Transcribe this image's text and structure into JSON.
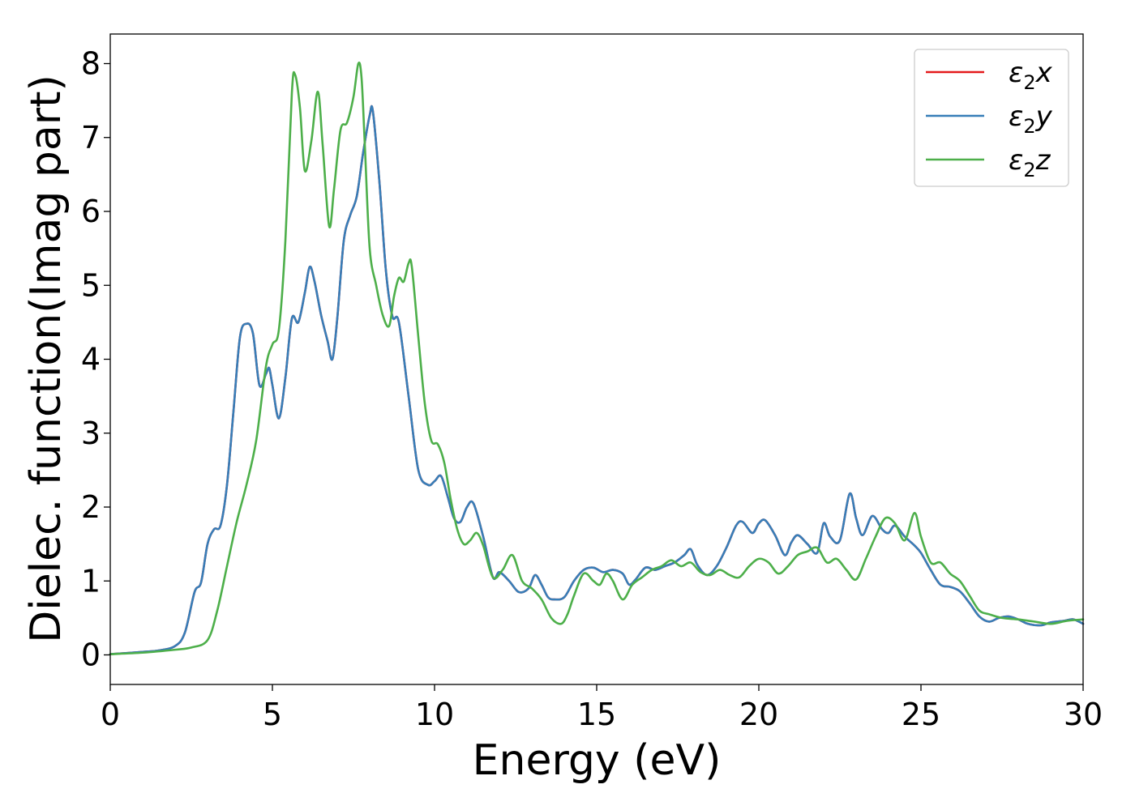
{
  "chart_data": {
    "type": "line",
    "xlabel": "Energy (eV)",
    "ylabel": "Dielec. function(Imag part)",
    "xlim": [
      0,
      30
    ],
    "ylim": [
      -0.4,
      8.4
    ],
    "xticks": [
      "0",
      "5",
      "10",
      "15",
      "20",
      "25",
      "30"
    ],
    "yticks": [
      "0",
      "1",
      "2",
      "3",
      "4",
      "5",
      "6",
      "7",
      "8"
    ],
    "grid": false,
    "legend_position": "top-right",
    "legend": [
      {
        "base": "ε",
        "sub": "2",
        "suffix": "x",
        "color": "#e41a1c"
      },
      {
        "base": "ε",
        "sub": "2",
        "suffix": "y",
        "color": "#377eb8"
      },
      {
        "base": "ε",
        "sub": "2",
        "suffix": "z",
        "color": "#4daf4a"
      }
    ],
    "series": [
      {
        "name": "ε2x",
        "color": "#e41a1c",
        "x": [
          0,
          1,
          1.5,
          2,
          2.3,
          2.6,
          2.8,
          3.0,
          3.2,
          3.4,
          3.6,
          3.8,
          4.0,
          4.2,
          4.4,
          4.6,
          4.8,
          4.9,
          5.0,
          5.2,
          5.4,
          5.6,
          5.8,
          6.0,
          6.15,
          6.3,
          6.5,
          6.7,
          6.85,
          7.0,
          7.2,
          7.4,
          7.6,
          7.8,
          8.0,
          8.1,
          8.3,
          8.5,
          8.7,
          8.9,
          9.2,
          9.5,
          9.8,
          10.0,
          10.2,
          10.4,
          10.6,
          10.8,
          11.0,
          11.2,
          11.5,
          11.8,
          12.0,
          12.3,
          12.6,
          12.9,
          13.1,
          13.3,
          13.5,
          13.7,
          14.0,
          14.3,
          14.6,
          14.9,
          15.2,
          15.5,
          15.8,
          16.0,
          16.2,
          16.5,
          16.8,
          17.1,
          17.4,
          17.7,
          17.9,
          18.1,
          18.4,
          18.7,
          19.0,
          19.3,
          19.5,
          19.8,
          20.0,
          20.2,
          20.5,
          20.8,
          21.0,
          21.2,
          21.5,
          21.8,
          22.0,
          22.2,
          22.5,
          22.8,
          23.0,
          23.2,
          23.5,
          23.8,
          24.0,
          24.2,
          24.5,
          24.8,
          25.0,
          25.3,
          25.6,
          25.9,
          26.2,
          26.5,
          26.8,
          27.1,
          27.4,
          27.7,
          28.0,
          28.3,
          28.7,
          29.0,
          29.4,
          29.7,
          30.0
        ],
        "values": [
          0.01,
          0.04,
          0.06,
          0.12,
          0.3,
          0.85,
          0.98,
          1.5,
          1.7,
          1.75,
          2.3,
          3.3,
          4.3,
          4.48,
          4.35,
          3.65,
          3.8,
          3.88,
          3.65,
          3.2,
          3.75,
          4.55,
          4.5,
          4.9,
          5.25,
          5.05,
          4.6,
          4.25,
          4.0,
          4.55,
          5.6,
          5.95,
          6.2,
          6.8,
          7.3,
          7.35,
          6.4,
          5.2,
          4.58,
          4.5,
          3.5,
          2.5,
          2.3,
          2.35,
          2.42,
          2.15,
          1.85,
          1.8,
          2.0,
          2.05,
          1.6,
          1.05,
          1.12,
          1.0,
          0.85,
          0.9,
          1.08,
          0.95,
          0.78,
          0.75,
          0.78,
          1.0,
          1.15,
          1.18,
          1.12,
          1.15,
          1.1,
          0.95,
          1.02,
          1.18,
          1.15,
          1.2,
          1.25,
          1.35,
          1.43,
          1.22,
          1.08,
          1.2,
          1.45,
          1.75,
          1.8,
          1.65,
          1.78,
          1.82,
          1.62,
          1.35,
          1.52,
          1.62,
          1.5,
          1.38,
          1.78,
          1.6,
          1.55,
          2.18,
          1.85,
          1.62,
          1.88,
          1.7,
          1.65,
          1.75,
          1.6,
          1.48,
          1.38,
          1.15,
          0.95,
          0.92,
          0.86,
          0.7,
          0.52,
          0.45,
          0.5,
          0.52,
          0.48,
          0.42,
          0.4,
          0.44,
          0.46,
          0.48,
          0.42
        ]
      },
      {
        "name": "ε2y",
        "color": "#377eb8",
        "x": [
          0,
          1,
          1.5,
          2,
          2.3,
          2.6,
          2.8,
          3.0,
          3.2,
          3.4,
          3.6,
          3.8,
          4.0,
          4.2,
          4.4,
          4.6,
          4.8,
          4.9,
          5.0,
          5.2,
          5.4,
          5.6,
          5.8,
          6.0,
          6.15,
          6.3,
          6.5,
          6.7,
          6.85,
          7.0,
          7.2,
          7.4,
          7.6,
          7.8,
          8.0,
          8.1,
          8.3,
          8.5,
          8.7,
          8.9,
          9.2,
          9.5,
          9.8,
          10.0,
          10.2,
          10.4,
          10.6,
          10.8,
          11.0,
          11.2,
          11.5,
          11.8,
          12.0,
          12.3,
          12.6,
          12.9,
          13.1,
          13.3,
          13.5,
          13.7,
          14.0,
          14.3,
          14.6,
          14.9,
          15.2,
          15.5,
          15.8,
          16.0,
          16.2,
          16.5,
          16.8,
          17.1,
          17.4,
          17.7,
          17.9,
          18.1,
          18.4,
          18.7,
          19.0,
          19.3,
          19.5,
          19.8,
          20.0,
          20.2,
          20.5,
          20.8,
          21.0,
          21.2,
          21.5,
          21.8,
          22.0,
          22.2,
          22.5,
          22.8,
          23.0,
          23.2,
          23.5,
          23.8,
          24.0,
          24.2,
          24.5,
          24.8,
          25.0,
          25.3,
          25.6,
          25.9,
          26.2,
          26.5,
          26.8,
          27.1,
          27.4,
          27.7,
          28.0,
          28.3,
          28.7,
          29.0,
          29.4,
          29.7,
          30.0
        ],
        "values": [
          0.01,
          0.04,
          0.06,
          0.12,
          0.3,
          0.85,
          0.98,
          1.5,
          1.7,
          1.75,
          2.3,
          3.3,
          4.3,
          4.48,
          4.35,
          3.65,
          3.8,
          3.88,
          3.65,
          3.2,
          3.75,
          4.55,
          4.5,
          4.9,
          5.25,
          5.05,
          4.6,
          4.25,
          4.0,
          4.55,
          5.6,
          5.95,
          6.2,
          6.8,
          7.3,
          7.35,
          6.4,
          5.2,
          4.58,
          4.5,
          3.5,
          2.5,
          2.3,
          2.35,
          2.42,
          2.15,
          1.85,
          1.8,
          2.0,
          2.05,
          1.6,
          1.05,
          1.12,
          1.0,
          0.85,
          0.9,
          1.08,
          0.95,
          0.78,
          0.75,
          0.78,
          1.0,
          1.15,
          1.18,
          1.12,
          1.15,
          1.1,
          0.95,
          1.02,
          1.18,
          1.15,
          1.2,
          1.25,
          1.35,
          1.43,
          1.22,
          1.08,
          1.2,
          1.45,
          1.75,
          1.8,
          1.65,
          1.78,
          1.82,
          1.62,
          1.35,
          1.52,
          1.62,
          1.5,
          1.38,
          1.78,
          1.6,
          1.55,
          2.18,
          1.85,
          1.62,
          1.88,
          1.7,
          1.65,
          1.75,
          1.6,
          1.48,
          1.38,
          1.15,
          0.95,
          0.92,
          0.86,
          0.7,
          0.52,
          0.45,
          0.5,
          0.52,
          0.48,
          0.42,
          0.4,
          0.44,
          0.46,
          0.48,
          0.42
        ]
      },
      {
        "name": "ε2z",
        "color": "#4daf4a",
        "x": [
          0,
          1,
          2,
          2.5,
          3.0,
          3.3,
          3.6,
          3.9,
          4.2,
          4.5,
          4.8,
          5.0,
          5.2,
          5.4,
          5.6,
          5.7,
          5.85,
          6.0,
          6.2,
          6.4,
          6.55,
          6.75,
          6.9,
          7.1,
          7.3,
          7.5,
          7.65,
          7.75,
          7.85,
          8.0,
          8.2,
          8.4,
          8.6,
          8.75,
          8.9,
          9.05,
          9.2,
          9.3,
          9.5,
          9.7,
          9.9,
          10.1,
          10.3,
          10.5,
          10.7,
          10.9,
          11.1,
          11.3,
          11.5,
          11.8,
          12.1,
          12.4,
          12.7,
          13.0,
          13.3,
          13.6,
          13.9,
          14.1,
          14.3,
          14.6,
          14.9,
          15.1,
          15.3,
          15.5,
          15.8,
          16.1,
          16.4,
          16.7,
          17.0,
          17.3,
          17.6,
          17.9,
          18.2,
          18.5,
          18.8,
          19.1,
          19.4,
          19.7,
          20.0,
          20.3,
          20.6,
          20.9,
          21.2,
          21.5,
          21.8,
          22.1,
          22.4,
          22.7,
          23.0,
          23.3,
          23.6,
          23.9,
          24.2,
          24.5,
          24.8,
          25.0,
          25.3,
          25.6,
          25.9,
          26.2,
          26.5,
          26.8,
          27.1,
          27.5,
          28.0,
          28.5,
          29.0,
          29.5,
          30.0
        ],
        "values": [
          0.01,
          0.03,
          0.07,
          0.1,
          0.2,
          0.6,
          1.2,
          1.8,
          2.3,
          2.9,
          3.9,
          4.2,
          4.4,
          5.6,
          7.6,
          7.85,
          7.4,
          6.55,
          6.95,
          7.62,
          6.9,
          5.8,
          6.3,
          7.1,
          7.2,
          7.55,
          8.0,
          7.8,
          6.9,
          5.5,
          5.0,
          4.6,
          4.45,
          4.85,
          5.1,
          5.05,
          5.3,
          5.25,
          4.3,
          3.4,
          2.9,
          2.85,
          2.6,
          2.1,
          1.7,
          1.5,
          1.55,
          1.65,
          1.48,
          1.05,
          1.15,
          1.35,
          1.0,
          0.9,
          0.75,
          0.5,
          0.42,
          0.55,
          0.8,
          1.1,
          1.0,
          0.95,
          1.1,
          1.0,
          0.75,
          0.95,
          1.05,
          1.15,
          1.2,
          1.28,
          1.2,
          1.25,
          1.12,
          1.08,
          1.15,
          1.08,
          1.05,
          1.2,
          1.3,
          1.25,
          1.1,
          1.2,
          1.35,
          1.4,
          1.45,
          1.25,
          1.3,
          1.15,
          1.02,
          1.3,
          1.6,
          1.85,
          1.78,
          1.55,
          1.92,
          1.6,
          1.25,
          1.25,
          1.1,
          1.0,
          0.8,
          0.6,
          0.55,
          0.5,
          0.48,
          0.45,
          0.42,
          0.46,
          0.48
        ]
      }
    ]
  }
}
